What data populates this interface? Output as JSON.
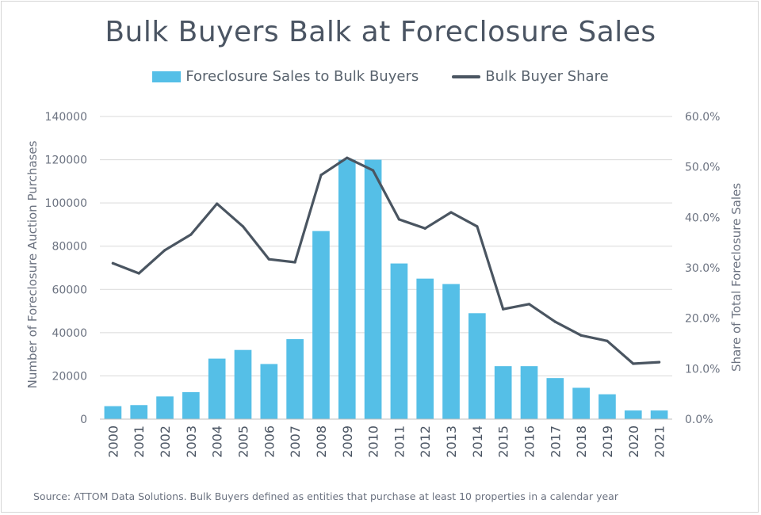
{
  "chart_data": {
    "type": "bar",
    "title": "Bulk Buyers Balk at Foreclosure Sales",
    "categories": [
      "2000",
      "2001",
      "2002",
      "2003",
      "2004",
      "2005",
      "2006",
      "2007",
      "2008",
      "2009",
      "2010",
      "2011",
      "2012",
      "2013",
      "2014",
      "2015",
      "2016",
      "2017",
      "2018",
      "2019",
      "2020",
      "2021"
    ],
    "series": [
      {
        "name": "Foreclosure Sales to Bulk Buyers",
        "type": "bar",
        "axis": "left",
        "color": "#55bfe7",
        "values": [
          6000,
          6500,
          10500,
          12500,
          28000,
          32000,
          25500,
          37000,
          87000,
          120000,
          120000,
          72000,
          65000,
          62500,
          49000,
          24500,
          24500,
          19000,
          14500,
          11500,
          4000,
          4000
        ]
      },
      {
        "name": "Bulk Buyer Share",
        "type": "line",
        "axis": "right",
        "color": "#4a5561",
        "values": [
          30.9,
          28.9,
          33.5,
          36.6,
          42.7,
          38.2,
          31.7,
          31.1,
          48.4,
          51.8,
          49.3,
          39.6,
          37.8,
          41.0,
          38.2,
          21.8,
          22.8,
          19.3,
          16.6,
          15.5,
          11.0,
          11.3
        ]
      }
    ],
    "ylabel": "Number of Foreclosure Auction Purchases",
    "ylabel_right": "Share of Total Foreclosure Sales",
    "ylim": [
      0,
      140000
    ],
    "ylim_right": [
      0,
      60
    ],
    "yticks": [
      "0",
      "20000",
      "40000",
      "60000",
      "80000",
      "100000",
      "120000",
      "140000"
    ],
    "yticks_right": [
      "0.0%",
      "10.0%",
      "20.0%",
      "30.0%",
      "40.0%",
      "50.0%",
      "60.0%"
    ],
    "grid": true,
    "legend_placement": "top-center",
    "source": "Source: ATTOM Data Solutions. Bulk Buyers defined as entities that purchase at least 10 properties in a calendar year"
  }
}
